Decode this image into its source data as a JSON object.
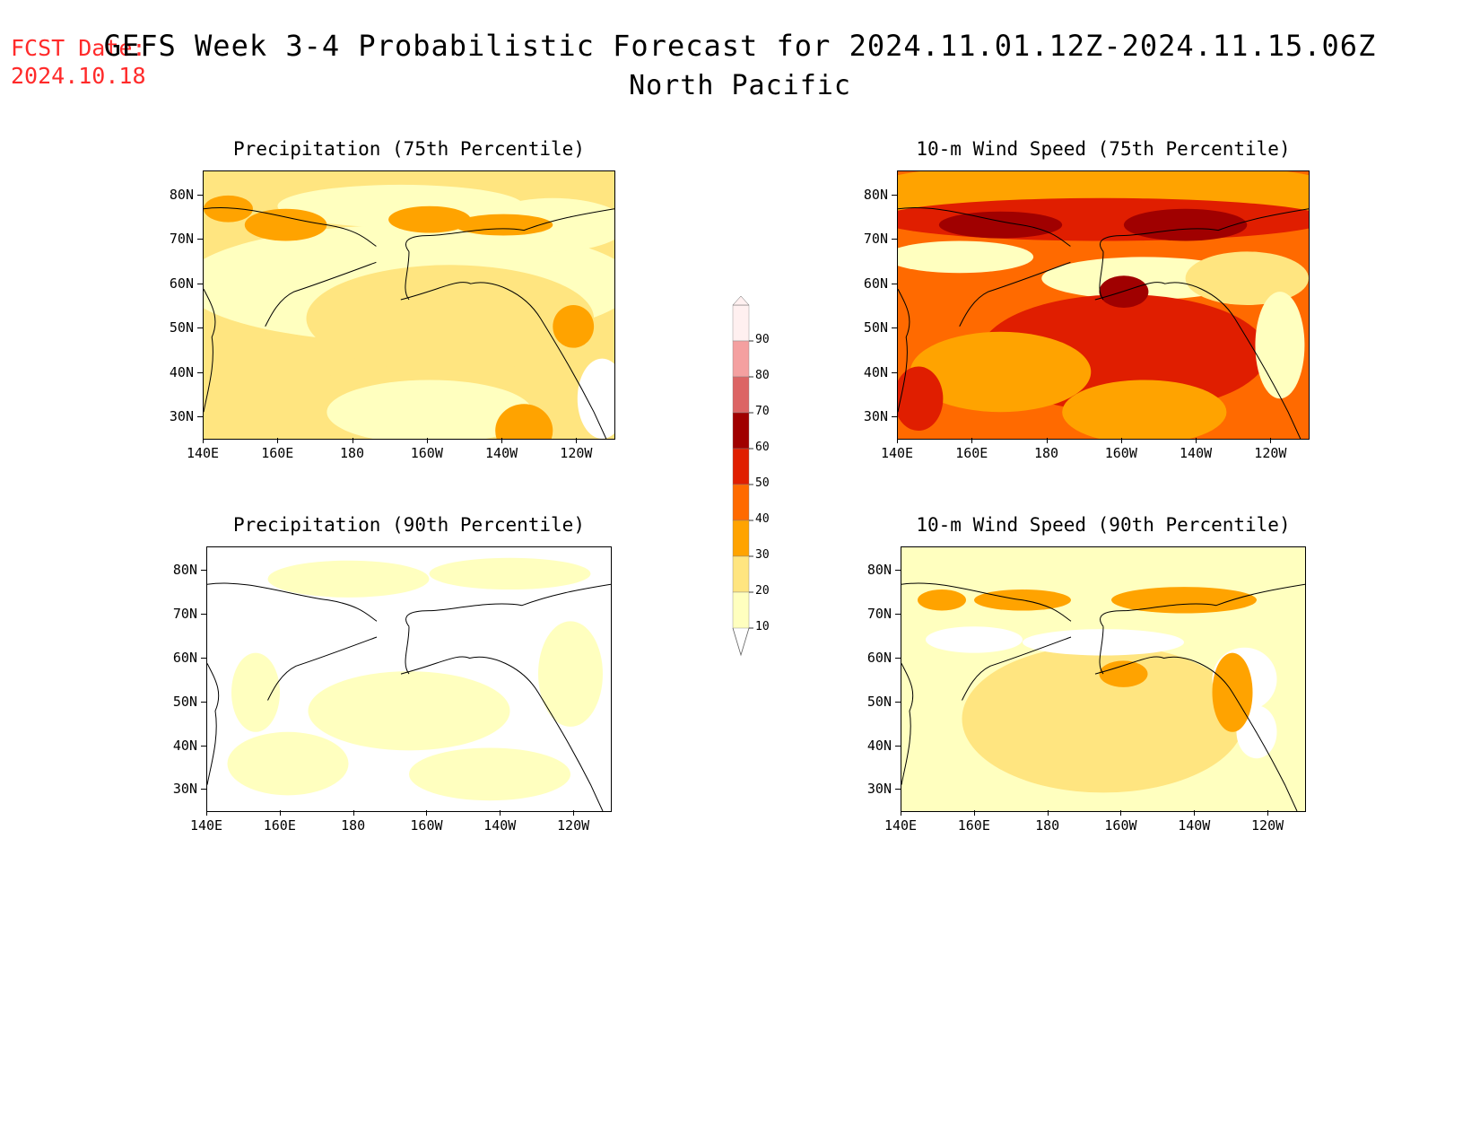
{
  "header": {
    "fcst_label": "FCST Date:",
    "fcst_date": "2024.10.18",
    "title": "GEFS Week 3-4 Probabilistic Forecast for 2024.11.01.12Z-2024.11.15.06Z",
    "region": "North Pacific"
  },
  "axes": {
    "lat_labels": [
      "80N",
      "70N",
      "60N",
      "50N",
      "40N",
      "30N"
    ],
    "lon_labels": [
      "140E",
      "160E",
      "180",
      "160W",
      "140W",
      "120W"
    ]
  },
  "panels": [
    {
      "title": "Precipitation (75th Percentile)",
      "scheme": "precip75"
    },
    {
      "title": "10-m Wind Speed (75th Percentile)",
      "scheme": "wind75"
    },
    {
      "title": "Precipitation (90th Percentile)",
      "scheme": "precip90"
    },
    {
      "title": "10-m Wind Speed (90th Percentile)",
      "scheme": "wind90"
    }
  ],
  "colorbar": {
    "levels": [
      "90",
      "80",
      "70",
      "60",
      "50",
      "40",
      "30",
      "20",
      "10"
    ],
    "colors": [
      "#fff0f0",
      "#f4a0a0",
      "#dc6464",
      "#a00000",
      "#e01e00",
      "#ff6a00",
      "#ffa300",
      "#ffe580",
      "#ffffbf"
    ]
  }
}
